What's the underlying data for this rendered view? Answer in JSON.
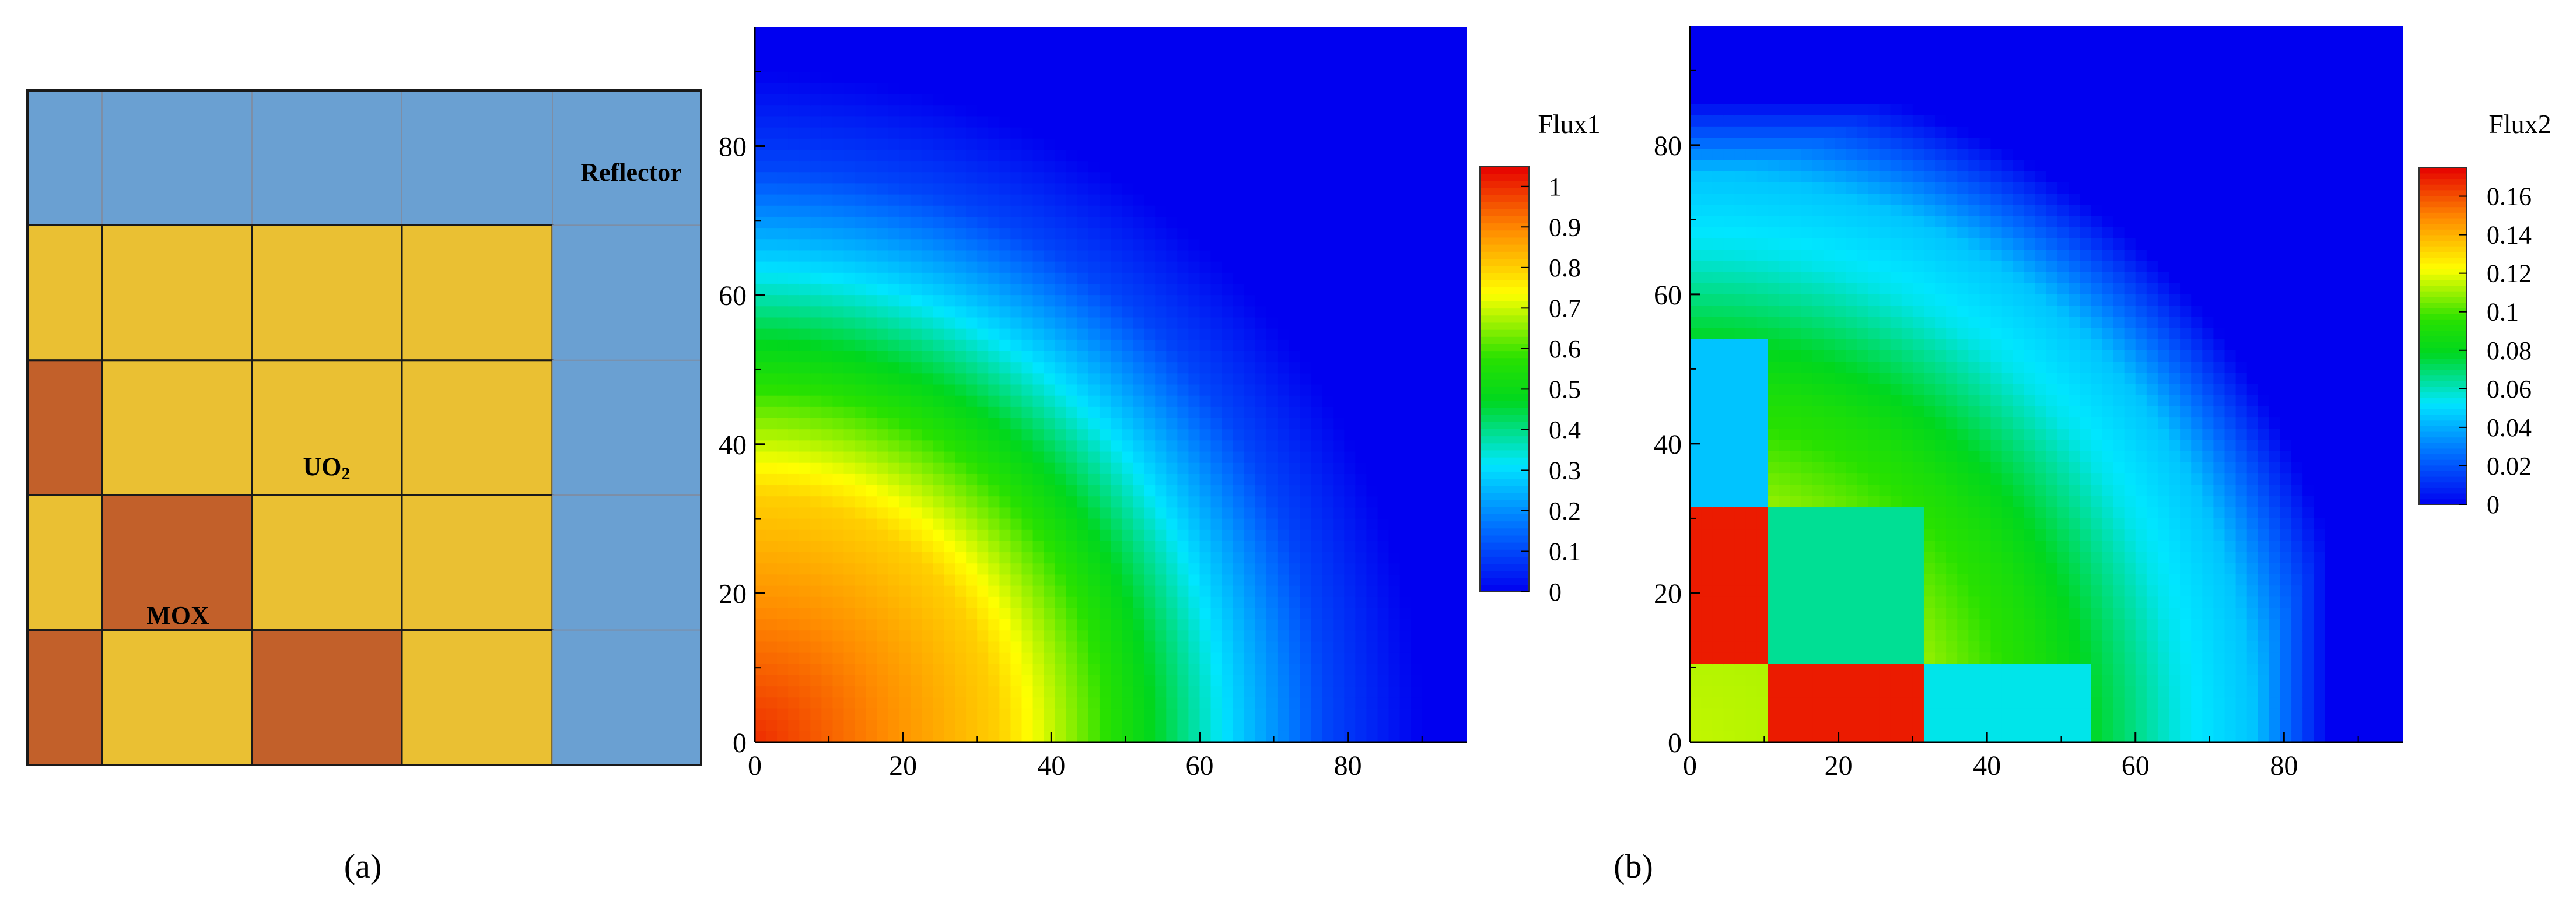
{
  "figure": {
    "panel_a_label": "(a)",
    "panel_b_label": "(b)"
  },
  "layout_map": {
    "labels": {
      "reflector": "Reflector",
      "uo2_main": "UO",
      "uo2_sub": "2",
      "mox": "MOX"
    },
    "colors": {
      "reflector": "#6aa0d2",
      "uo2": "#eac033",
      "mox": "#c2602a"
    },
    "grid": [
      [
        "reflector",
        "reflector",
        "reflector",
        "reflector",
        "reflector"
      ],
      [
        "uo2",
        "uo2",
        "uo2",
        "uo2",
        "reflector"
      ],
      [
        "mox",
        "uo2",
        "uo2",
        "uo2",
        "reflector"
      ],
      [
        "uo2",
        "mox",
        "uo2",
        "uo2",
        "reflector"
      ],
      [
        "mox",
        "uo2",
        "mox",
        "uo2",
        "reflector"
      ]
    ]
  },
  "chart_data": [
    {
      "type": "heatmap",
      "title": "",
      "xlabel": "",
      "ylabel": "",
      "xlim": [
        0,
        96
      ],
      "ylim": [
        0,
        96
      ],
      "xticks": [
        0,
        20,
        40,
        60,
        80
      ],
      "yticks": [
        0,
        20,
        40,
        60,
        80
      ],
      "colorbar": {
        "title": "Flux1",
        "range": [
          0,
          1.05
        ],
        "ticks": [
          "0",
          "0.1",
          "0.2",
          "0.3",
          "0.4",
          "0.5",
          "0.6",
          "0.7",
          "0.8",
          "0.9",
          "1"
        ],
        "tick_values": [
          0,
          0.1,
          0.2,
          0.3,
          0.4,
          0.5,
          0.6,
          0.7,
          0.8,
          0.9,
          1
        ]
      },
      "field_profile": {
        "peak": 1.0,
        "contours": [
          {
            "level": 0.8,
            "radius": 33
          },
          {
            "level": 0.6,
            "radius": 46
          },
          {
            "level": 0.3,
            "radius": 64
          },
          {
            "level": 0.1,
            "radius": 77
          },
          {
            "level": 0.0,
            "radius": 90
          }
        ]
      }
    },
    {
      "type": "heatmap",
      "title": "",
      "xlabel": "",
      "ylabel": "",
      "xlim": [
        0,
        96
      ],
      "ylim": [
        0,
        96
      ],
      "xticks": [
        0,
        20,
        40,
        60,
        80
      ],
      "yticks": [
        0,
        20,
        40,
        60,
        80
      ],
      "colorbar": {
        "title": "Flux2",
        "range": [
          0,
          0.175
        ],
        "ticks": [
          "0",
          "0.02",
          "0.04",
          "0.06",
          "0.08",
          "0.1",
          "0.12",
          "0.14",
          "0.16"
        ],
        "tick_values": [
          0,
          0.02,
          0.04,
          0.06,
          0.08,
          0.1,
          0.12,
          0.14,
          0.16
        ]
      },
      "field_profile": {
        "contours": [
          {
            "level": 0.11,
            "radius": 33
          },
          {
            "level": 0.09,
            "radius": 48
          },
          {
            "level": 0.055,
            "radius": 66
          },
          {
            "level": 0.045,
            "radius": 76
          },
          {
            "level": 0.0,
            "radius": 90
          }
        ],
        "mox_blocks": [
          {
            "x": [
              0,
              11
            ],
            "y": [
              11,
              32
            ],
            "value": 0.17
          },
          {
            "x": [
              11,
              32
            ],
            "y": [
              0,
              11
            ],
            "value": 0.17
          }
        ],
        "low_blocks": [
          {
            "x": [
              0,
              11
            ],
            "y": [
              32,
              54
            ],
            "value": 0.045
          },
          {
            "x": [
              11,
              32
            ],
            "y": [
              11,
              32
            ],
            "value": 0.065
          },
          {
            "x": [
              32,
              54
            ],
            "y": [
              0,
              11
            ],
            "value": 0.055
          }
        ]
      }
    }
  ]
}
